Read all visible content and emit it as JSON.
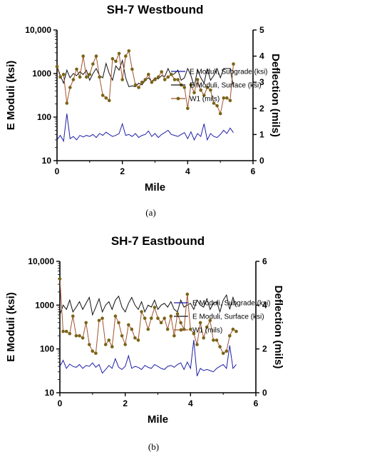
{
  "chart_data": [
    {
      "type": "line",
      "title": "SH-7 Westbound",
      "xlabel": "Mile",
      "ylabel_left": "E Moduli (ksi)",
      "ylabel_right": "Deflection (mils)",
      "caption": "(a)",
      "xlim": [
        0,
        6
      ],
      "x_ticks": [
        "0",
        "2",
        "4",
        "6"
      ],
      "ylim_left": [
        10,
        10000
      ],
      "y_scale_left": "log",
      "y_ticks_left": [
        "10",
        "100",
        "1000",
        "10,000"
      ],
      "ylim_right": [
        0,
        5
      ],
      "y_ticks_right": [
        "0",
        "1",
        "2",
        "3",
        "4",
        "5"
      ],
      "legend_position": "right",
      "series": [
        {
          "name": "E Moduli, Subgrade (ksi)",
          "axis": "left",
          "color": "#1f1fa8",
          "marker": "none",
          "x": [
            0,
            0.1,
            0.2,
            0.3,
            0.4,
            0.5,
            0.6,
            0.7,
            0.8,
            0.9,
            1.0,
            1.1,
            1.2,
            1.3,
            1.4,
            1.5,
            1.6,
            1.7,
            1.8,
            1.9,
            2.0,
            2.1,
            2.2,
            2.3,
            2.4,
            2.5,
            2.6,
            2.7,
            2.8,
            2.9,
            3.0,
            3.1,
            3.2,
            3.3,
            3.4,
            3.5,
            3.6,
            3.7,
            3.8,
            3.9,
            4.0,
            4.1,
            4.2,
            4.3,
            4.4,
            4.5,
            4.6,
            4.7,
            4.8,
            4.9,
            5.0,
            5.1,
            5.2,
            5.3,
            5.4
          ],
          "y": [
            30,
            38,
            28,
            120,
            32,
            36,
            30,
            38,
            35,
            38,
            36,
            40,
            34,
            42,
            38,
            45,
            40,
            36,
            38,
            42,
            70,
            38,
            40,
            36,
            42,
            34,
            38,
            40,
            48,
            36,
            42,
            34,
            40,
            44,
            50,
            40,
            38,
            36,
            40,
            44,
            32,
            46,
            30,
            42,
            36,
            70,
            30,
            42,
            36,
            34,
            40,
            50,
            42,
            56,
            44
          ]
        },
        {
          "name": "E Moduli, Surface (ksi)",
          "axis": "left",
          "color": "#111111",
          "marker": "none",
          "x": [
            0,
            0.1,
            0.2,
            0.3,
            0.4,
            0.5,
            0.6,
            0.7,
            0.8,
            0.9,
            1.0,
            1.1,
            1.2,
            1.3,
            1.4,
            1.5,
            1.6,
            1.7,
            1.8,
            1.9,
            2.0,
            2.1,
            2.2,
            2.3,
            2.4,
            2.5,
            2.6,
            2.7,
            2.8,
            2.9,
            3.0,
            3.1,
            3.2,
            3.3,
            3.4,
            3.5,
            3.6,
            3.7,
            3.8,
            3.9,
            4.0,
            4.1,
            4.2,
            4.3,
            4.4,
            4.5,
            4.6,
            4.7,
            4.8,
            4.9,
            5.0,
            5.1,
            5.2,
            5.3,
            5.4
          ],
          "y": [
            1500,
            900,
            600,
            1200,
            800,
            1000,
            900,
            1100,
            950,
            1200,
            700,
            1000,
            1300,
            900,
            800,
            1700,
            1000,
            700,
            1500,
            1200,
            2000,
            800,
            500,
            520,
            500,
            600,
            550,
            700,
            800,
            650,
            800,
            750,
            900,
            850,
            1300,
            900,
            1000,
            1200,
            700,
            800,
            1300,
            900,
            500,
            1200,
            800,
            600,
            1300,
            700,
            900,
            1300,
            800,
            1300,
            1300,
            1300,
            500
          ]
        },
        {
          "name": "W1 (mils)",
          "axis": "right",
          "color": "#a0522d",
          "marker_color": "#7a6416",
          "marker": "circle",
          "x": [
            0,
            0.1,
            0.2,
            0.3,
            0.4,
            0.5,
            0.6,
            0.7,
            0.8,
            0.9,
            1.0,
            1.1,
            1.2,
            1.3,
            1.4,
            1.5,
            1.6,
            1.7,
            1.8,
            1.9,
            2.0,
            2.1,
            2.2,
            2.3,
            2.4,
            2.5,
            2.6,
            2.7,
            2.8,
            2.9,
            3.0,
            3.1,
            3.2,
            3.3,
            3.4,
            3.5,
            3.6,
            3.7,
            3.8,
            3.9,
            4.0,
            4.1,
            4.2,
            4.3,
            4.4,
            4.5,
            4.6,
            4.7,
            4.8,
            4.9,
            5.0,
            5.1,
            5.2,
            5.3,
            5.4
          ],
          "y": [
            3.6,
            3.2,
            3.3,
            2.2,
            2.8,
            3.1,
            3.5,
            3.2,
            4.0,
            3.2,
            3.3,
            3.7,
            4.0,
            3.2,
            2.5,
            2.4,
            2.3,
            3.9,
            3.8,
            4.1,
            3.1,
            4.0,
            4.2,
            3.5,
            2.9,
            2.8,
            3.0,
            3.1,
            3.3,
            3.0,
            3.1,
            3.2,
            3.4,
            3.1,
            3.2,
            3.3,
            3.1,
            3.1,
            2.9,
            2.8,
            2.0,
            2.9,
            2.6,
            3.1,
            2.7,
            2.5,
            2.8,
            2.7,
            2.2,
            2.1,
            1.8,
            2.4,
            2.4,
            2.3,
            3.7
          ]
        }
      ]
    },
    {
      "type": "line",
      "title": "SH-7 Eastbound",
      "xlabel": "Mile",
      "ylabel_left": "E Moduli (ksi)",
      "ylabel_right": "Deflection (mils)",
      "caption": "(b)",
      "xlim": [
        0,
        6
      ],
      "x_ticks": [
        "0",
        "2",
        "4",
        "6"
      ],
      "ylim_left": [
        10,
        10000
      ],
      "y_scale_left": "log",
      "y_ticks_left": [
        "10",
        "100",
        "1000",
        "10,000"
      ],
      "ylim_right": [
        0,
        6
      ],
      "y_ticks_right": [
        "0",
        "2",
        "4",
        "6"
      ],
      "legend_position": "right",
      "series": [
        {
          "name": "E Moduli, Subgrade (ksi)",
          "axis": "left",
          "color": "#1f1fa8",
          "marker": "none",
          "x": [
            0,
            0.1,
            0.2,
            0.3,
            0.4,
            0.5,
            0.6,
            0.7,
            0.8,
            0.9,
            1.0,
            1.1,
            1.2,
            1.3,
            1.4,
            1.5,
            1.6,
            1.7,
            1.8,
            1.9,
            2.0,
            2.1,
            2.2,
            2.3,
            2.4,
            2.5,
            2.6,
            2.7,
            2.8,
            2.9,
            3.0,
            3.1,
            3.2,
            3.3,
            3.4,
            3.5,
            3.6,
            3.7,
            3.8,
            3.9,
            4.0,
            4.1,
            4.2,
            4.3,
            4.4,
            4.5,
            4.6,
            4.7,
            4.8,
            4.9,
            5.0,
            5.1,
            5.2,
            5.3,
            5.4
          ],
          "y": [
            40,
            55,
            36,
            45,
            40,
            38,
            44,
            36,
            42,
            40,
            48,
            38,
            44,
            28,
            34,
            42,
            36,
            60,
            38,
            34,
            40,
            70,
            36,
            40,
            38,
            34,
            42,
            38,
            36,
            44,
            40,
            36,
            34,
            40,
            42,
            38,
            44,
            48,
            34,
            50,
            36,
            160,
            24,
            36,
            32,
            34,
            32,
            30,
            36,
            40,
            44,
            36,
            120,
            36,
            44
          ]
        },
        {
          "name": "E Moduli, Surface (ksi)",
          "axis": "left",
          "color": "#111111",
          "marker": "none",
          "x": [
            0,
            0.1,
            0.2,
            0.3,
            0.4,
            0.5,
            0.6,
            0.7,
            0.8,
            0.9,
            1.0,
            1.1,
            1.2,
            1.3,
            1.4,
            1.5,
            1.6,
            1.7,
            1.8,
            1.9,
            2.0,
            2.1,
            2.2,
            2.3,
            2.4,
            2.5,
            2.6,
            2.7,
            2.8,
            2.9,
            3.0,
            3.1,
            3.2,
            3.3,
            3.4,
            3.5,
            3.6,
            3.7,
            3.8,
            3.9,
            4.0,
            4.1,
            4.2,
            4.3,
            4.4,
            4.5,
            4.6,
            4.7,
            4.8,
            4.9,
            5.0,
            5.1,
            5.2,
            5.3,
            5.4
          ],
          "y": [
            600,
            1000,
            800,
            1300,
            700,
            900,
            1200,
            800,
            1100,
            1500,
            600,
            900,
            1400,
            700,
            1000,
            1200,
            800,
            1300,
            1600,
            900,
            700,
            1100,
            1500,
            1000,
            800,
            1200,
            700,
            1000,
            900,
            1300,
            800,
            1000,
            1100,
            900,
            1200,
            800,
            700,
            1300,
            900,
            1000,
            1100,
            800,
            1300,
            1000,
            900,
            1400,
            800,
            1100,
            1200,
            700,
            1300,
            1700,
            800,
            1500,
            900
          ]
        },
        {
          "name": "W1 (mils)",
          "axis": "right",
          "color": "#a0522d",
          "marker_color": "#7a6416",
          "marker": "circle",
          "x": [
            0,
            0.1,
            0.2,
            0.3,
            0.4,
            0.5,
            0.6,
            0.7,
            0.8,
            0.9,
            1.0,
            1.1,
            1.2,
            1.3,
            1.4,
            1.5,
            1.6,
            1.7,
            1.8,
            1.9,
            2.0,
            2.1,
            2.2,
            2.3,
            2.4,
            2.5,
            2.6,
            2.7,
            2.8,
            2.9,
            3.0,
            3.1,
            3.2,
            3.3,
            3.4,
            3.5,
            3.6,
            3.7,
            3.8,
            3.9,
            4.0,
            4.1,
            4.2,
            4.3,
            4.4,
            4.5,
            4.6,
            4.7,
            4.8,
            4.9,
            5.0,
            5.1,
            5.2,
            5.3,
            5.4
          ],
          "y": [
            5.2,
            2.8,
            2.8,
            2.7,
            3.5,
            2.6,
            2.6,
            2.5,
            3.2,
            2.2,
            1.9,
            1.8,
            3.3,
            3.4,
            2.2,
            2.4,
            2.1,
            3.5,
            3.2,
            2.6,
            2.2,
            3.1,
            2.9,
            2.5,
            2.4,
            3.7,
            3.4,
            2.9,
            3.4,
            3.9,
            3.4,
            3.2,
            3.4,
            2.9,
            3.5,
            2.6,
            3.6,
            3.2,
            2.9,
            4.5,
            2.9,
            2.7,
            2.2,
            3.2,
            2.5,
            3.0,
            3.3,
            2.4,
            2.4,
            2.1,
            1.8,
            1.9,
            2.6,
            2.9,
            2.8
          ]
        }
      ]
    }
  ]
}
